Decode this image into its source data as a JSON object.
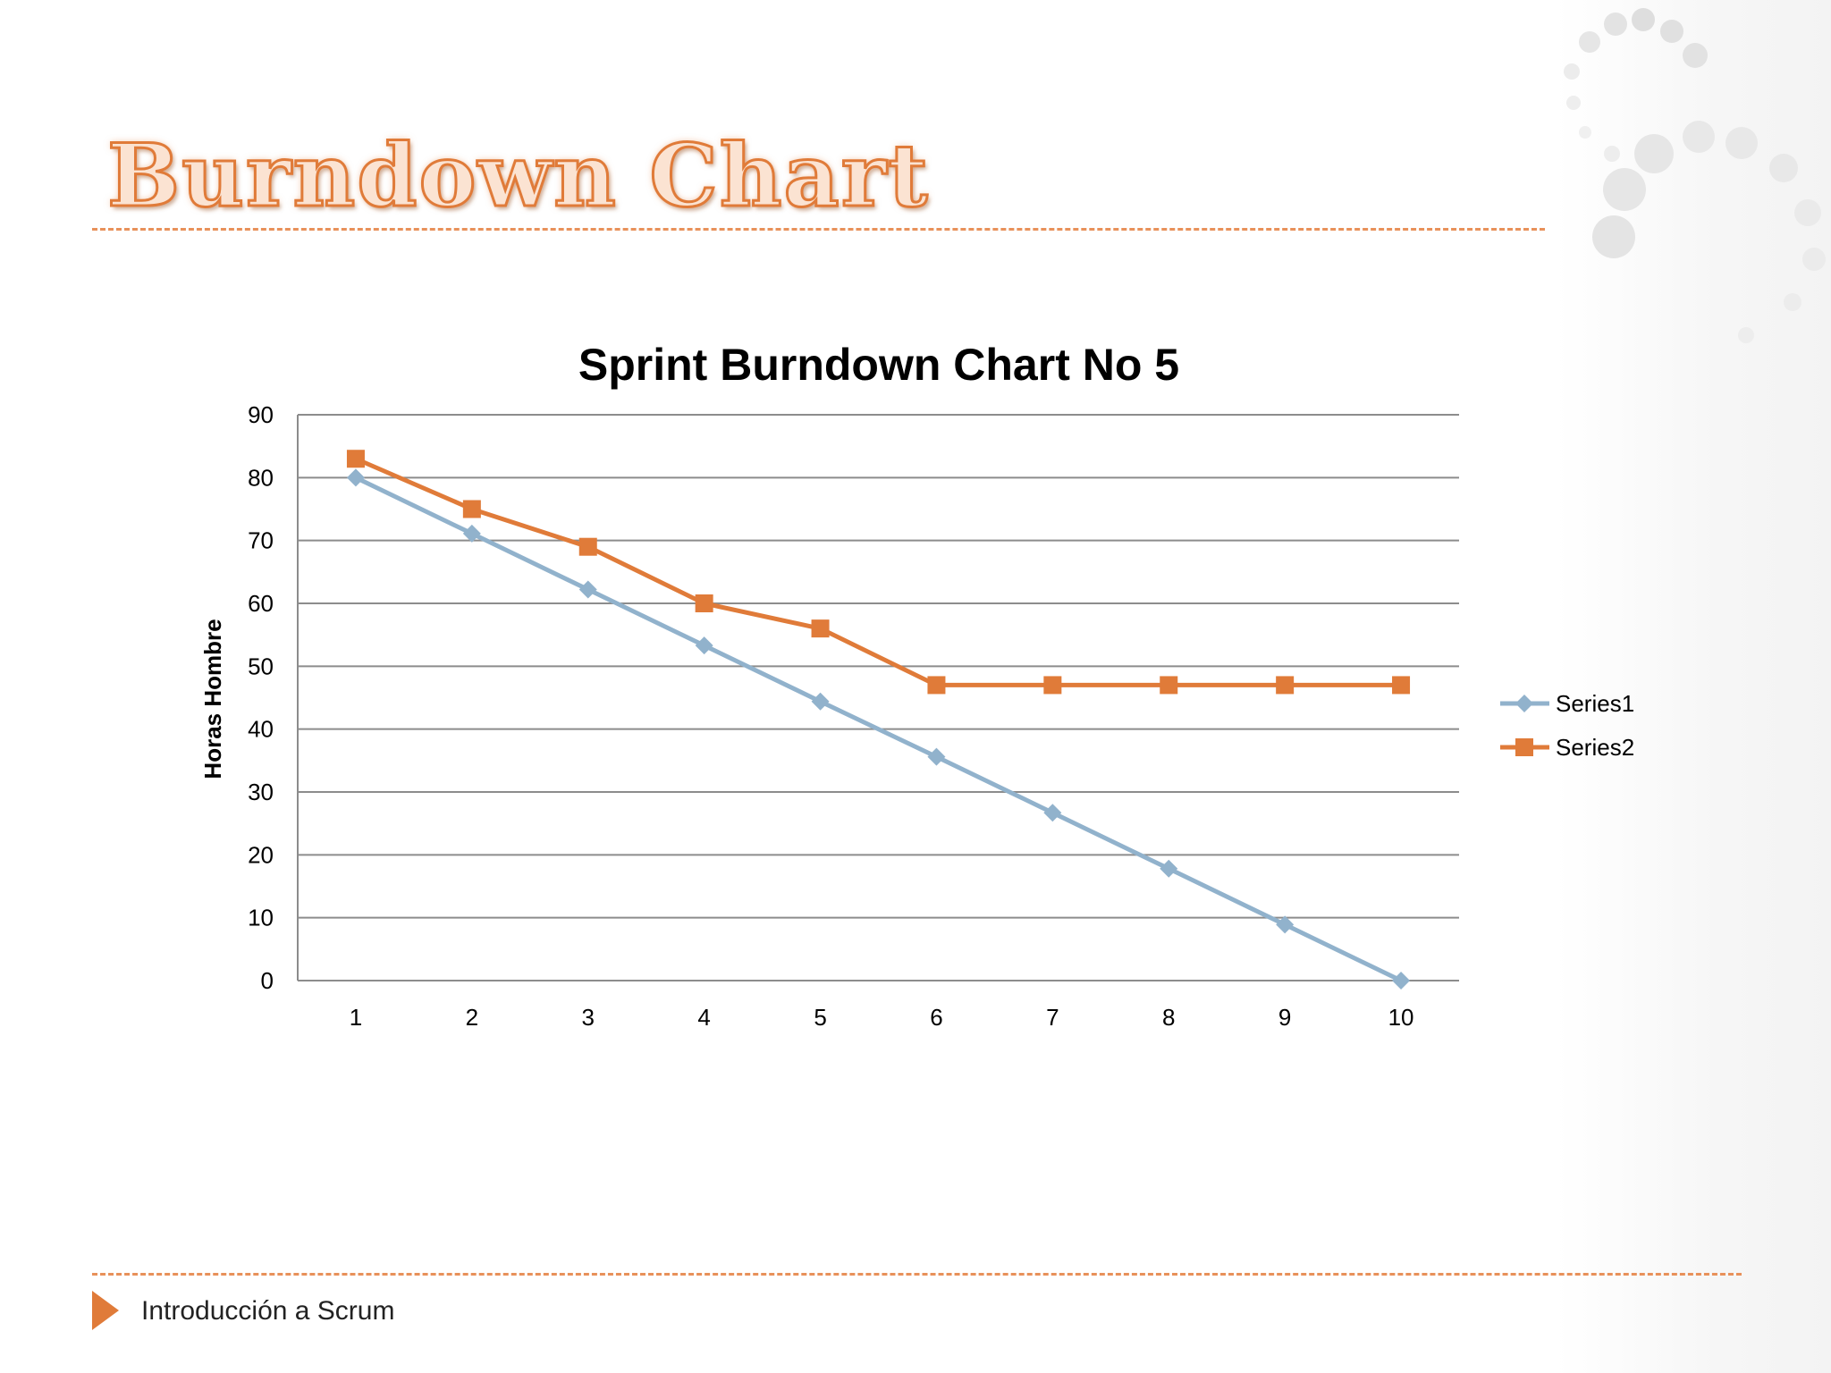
{
  "slide": {
    "title": "Burndown Chart",
    "footer": "Introducción a Scrum"
  },
  "colors": {
    "accent": "#e07b39",
    "series1": "#91b2cc",
    "series2": "#e07b39",
    "grid": "#8c8c8c"
  },
  "chart_data": {
    "type": "line",
    "title": "Sprint Burndown Chart No 5",
    "xlabel": "",
    "ylabel": "Horas Hombre",
    "x": [
      1,
      2,
      3,
      4,
      5,
      6,
      7,
      8,
      9,
      10
    ],
    "ylim": [
      0,
      90
    ],
    "yticks": [
      0,
      10,
      20,
      30,
      40,
      50,
      60,
      70,
      80,
      90
    ],
    "grid": true,
    "legend": "right",
    "series": [
      {
        "name": "Series1",
        "marker": "diamond",
        "color": "#91b2cc",
        "values": [
          80,
          71.1,
          62.2,
          53.3,
          44.4,
          35.6,
          26.7,
          17.8,
          8.9,
          0
        ]
      },
      {
        "name": "Series2",
        "marker": "square",
        "color": "#e07b39",
        "values": [
          83,
          75,
          69,
          60,
          56,
          47,
          47,
          47,
          47,
          47
        ]
      }
    ]
  }
}
